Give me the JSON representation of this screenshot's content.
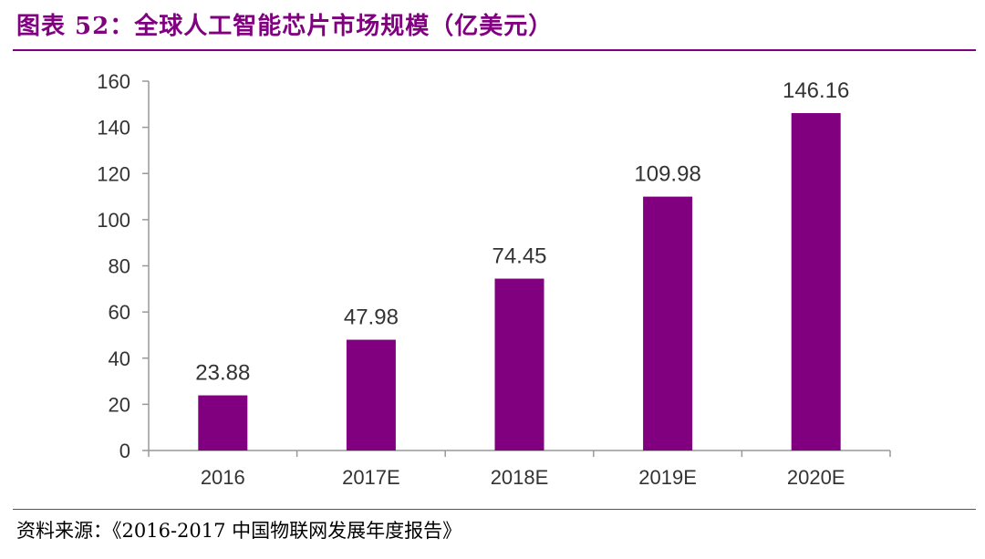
{
  "title": "图表 52：全球人工智能芯片市场规模（亿美元）",
  "source": "资料来源：《2016-2017 中国物联网发展年度报告》",
  "colors": {
    "accent": "#800080",
    "title": "#800080",
    "axis": "#999999",
    "text": "#333333"
  },
  "chart_data": {
    "type": "bar",
    "title": "",
    "xlabel": "",
    "ylabel": "",
    "categories": [
      "2016",
      "2017E",
      "2018E",
      "2019E",
      "2020E"
    ],
    "values": [
      23.88,
      47.98,
      74.45,
      109.98,
      146.16
    ],
    "data_labels": [
      "23.88",
      "47.98",
      "74.45",
      "109.98",
      "146.16"
    ],
    "ylim": [
      0,
      160
    ],
    "yticks": [
      0,
      20,
      40,
      60,
      80,
      100,
      120,
      140,
      160
    ],
    "grid": false,
    "legend": "none",
    "bar_color": "#800080"
  }
}
